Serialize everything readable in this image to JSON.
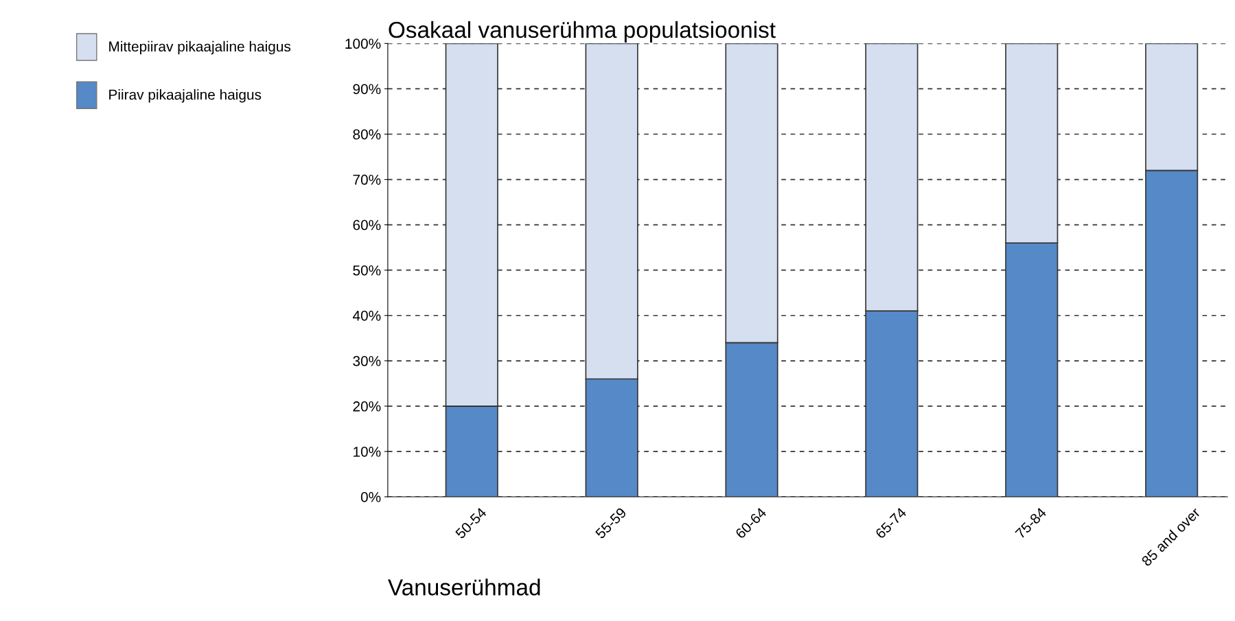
{
  "chart_data": {
    "type": "bar",
    "stacked": true,
    "title": "Osakaal vanuserühma populatsioonist",
    "xlabel": "Vanuserühmad",
    "categories": [
      "50-54",
      "55-59",
      "60-64",
      "65-74",
      "75-84",
      "85 and over"
    ],
    "series": [
      {
        "name": "Piirav pikaajaline haigus",
        "color": "#5589c7",
        "values": [
          20,
          26,
          34,
          41,
          56,
          72
        ]
      },
      {
        "name": "Mittepiirav pikaajaline haigus",
        "color": "#d6dff0",
        "values": [
          80,
          74,
          66,
          59,
          44,
          28
        ]
      }
    ],
    "ylim": [
      0,
      100
    ],
    "yticks": [
      {
        "value": 0,
        "label": "0%"
      },
      {
        "value": 10,
        "label": "10%"
      },
      {
        "value": 20,
        "label": "20%"
      },
      {
        "value": 30,
        "label": "30%"
      },
      {
        "value": 40,
        "label": "40%"
      },
      {
        "value": 50,
        "label": "50%"
      },
      {
        "value": 60,
        "label": "60%"
      },
      {
        "value": 70,
        "label": "70%"
      },
      {
        "value": 80,
        "label": "80%"
      },
      {
        "value": 90,
        "label": "90%"
      },
      {
        "value": 100,
        "label": "100%"
      }
    ],
    "grid": "y",
    "legend": "top left"
  }
}
